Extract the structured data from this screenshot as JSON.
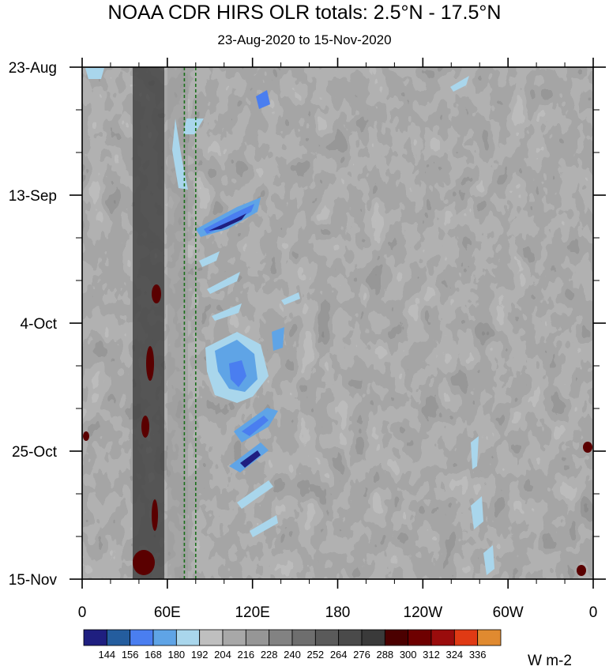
{
  "chart_data": {
    "type": "heatmap",
    "title": "NOAA CDR HIRS OLR totals: 2.5°N - 17.5°N",
    "subtitle": "23-Aug-2020 to 15-Nov-2020",
    "units": "W m-2",
    "x_ticks": [
      {
        "label": "0",
        "lon": 0
      },
      {
        "label": "60E",
        "lon": 60
      },
      {
        "label": "120E",
        "lon": 120
      },
      {
        "label": "180",
        "lon": 180
      },
      {
        "label": "120W",
        "lon": 240
      },
      {
        "label": "60W",
        "lon": 300
      },
      {
        "label": "0",
        "lon": 360
      }
    ],
    "xlim": [
      0,
      360
    ],
    "y_ticks": [
      {
        "label": "23-Aug",
        "day": 0
      },
      {
        "label": "13-Sep",
        "day": 21
      },
      {
        "label": "4-Oct",
        "day": 42
      },
      {
        "label": "25-Oct",
        "day": 63
      },
      {
        "label": "15-Nov",
        "day": 84
      }
    ],
    "ylim": [
      0,
      84
    ],
    "reference_lines_lon": [
      72,
      80
    ],
    "colorbar": {
      "levels": [
        "144",
        "156",
        "168",
        "180",
        "192",
        "204",
        "216",
        "228",
        "240",
        "252",
        "264",
        "276",
        "288",
        "300",
        "312",
        "324",
        "336"
      ],
      "colors": [
        "#1f1f80",
        "#245d9e",
        "#4a7ef0",
        "#5fa4e6",
        "#a9d6ec",
        "#bfbfbf",
        "#a8a8a8",
        "#969696",
        "#828282",
        "#6e6e6e",
        "#5a5a5a",
        "#4a4a4a",
        "#3a3a3a",
        "#4b0000",
        "#6e0000",
        "#9a0c0c",
        "#e03a14",
        "#e08a30"
      ]
    }
  }
}
